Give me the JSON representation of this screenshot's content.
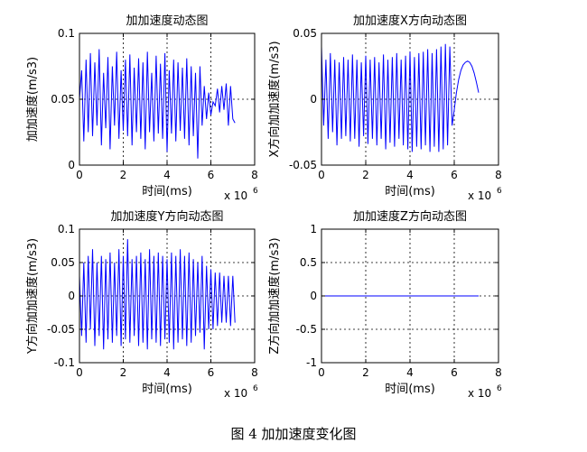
{
  "caption": "图 4  加加速度变化图",
  "colors": {
    "line": "#0000ff",
    "axis": "#000000",
    "grid": "#000000"
  },
  "chart_data": [
    {
      "type": "line",
      "title": "加加速度动态图",
      "xlabel": "时间(ms)",
      "ylabel": "加加速度(m/s3)",
      "x_exponent_label": "x 10",
      "x_exponent": "6",
      "xlim": [
        0,
        8
      ],
      "ylim": [
        0,
        0.1
      ],
      "xticks": [
        0,
        2,
        4,
        6,
        8
      ],
      "yticks": [
        0,
        0.05,
        0.1
      ],
      "xtick_labels": [
        "0",
        "2",
        "4",
        "6",
        "8"
      ],
      "ytick_labels": [
        "0",
        "0.05",
        "0.1"
      ],
      "grid": true,
      "series": [
        {
          "x": [
            0.0,
            0.1,
            0.2,
            0.3,
            0.4,
            0.5,
            0.6,
            0.7,
            0.8,
            0.9,
            1.0,
            1.1,
            1.2,
            1.3,
            1.4,
            1.5,
            1.6,
            1.7,
            1.8,
            1.9,
            2.0,
            2.1,
            2.2,
            2.3,
            2.4,
            2.5,
            2.6,
            2.7,
            2.8,
            2.9,
            3.0,
            3.1,
            3.2,
            3.3,
            3.4,
            3.5,
            3.6,
            3.7,
            3.8,
            3.9,
            4.0,
            4.1,
            4.2,
            4.3,
            4.4,
            4.5,
            4.6,
            4.7,
            4.8,
            4.9,
            5.0,
            5.1,
            5.2,
            5.3,
            5.4,
            5.5,
            5.6,
            5.7,
            5.8,
            5.9,
            6.0,
            6.1,
            6.2,
            6.3,
            6.4,
            6.5,
            6.6,
            6.7,
            6.8,
            6.9,
            7.0,
            7.1
          ],
          "y": [
            0.05,
            0.072,
            0.018,
            0.08,
            0.025,
            0.085,
            0.022,
            0.078,
            0.03,
            0.088,
            0.015,
            0.07,
            0.028,
            0.082,
            0.012,
            0.075,
            0.03,
            0.086,
            0.02,
            0.072,
            0.026,
            0.08,
            0.022,
            0.084,
            0.015,
            0.074,
            0.025,
            0.081,
            0.02,
            0.078,
            0.012,
            0.086,
            0.025,
            0.07,
            0.018,
            0.083,
            0.024,
            0.077,
            0.02,
            0.085,
            0.01,
            0.072,
            0.024,
            0.08,
            0.018,
            0.078,
            0.026,
            0.074,
            0.02,
            0.081,
            0.015,
            0.075,
            0.022,
            0.07,
            0.005,
            0.075,
            0.03,
            0.06,
            0.035,
            0.055,
            0.038,
            0.048,
            0.045,
            0.058,
            0.04,
            0.06,
            0.042,
            0.062,
            0.03,
            0.06,
            0.035,
            0.032
          ]
        }
      ]
    },
    {
      "type": "line",
      "title": "加加速度X方向动态图",
      "xlabel": "时间(ms)",
      "ylabel": "X方向加加速度(m/s3)",
      "x_exponent_label": "x 10",
      "x_exponent": "6",
      "xlim": [
        0,
        8
      ],
      "ylim": [
        -0.05,
        0.05
      ],
      "xticks": [
        0,
        2,
        4,
        6,
        8
      ],
      "yticks": [
        -0.05,
        0,
        0.05
      ],
      "xtick_labels": [
        "0",
        "2",
        "4",
        "6",
        "8"
      ],
      "ytick_labels": [
        "-0.05",
        "0",
        "0.05"
      ],
      "grid": true,
      "series": [
        {
          "x": [
            0.0,
            0.1,
            0.2,
            0.3,
            0.4,
            0.5,
            0.6,
            0.7,
            0.8,
            0.9,
            1.0,
            1.1,
            1.2,
            1.3,
            1.4,
            1.5,
            1.6,
            1.7,
            1.8,
            1.9,
            2.0,
            2.1,
            2.2,
            2.3,
            2.4,
            2.5,
            2.6,
            2.7,
            2.8,
            2.9,
            3.0,
            3.1,
            3.2,
            3.3,
            3.4,
            3.5,
            3.6,
            3.7,
            3.8,
            3.9,
            4.0,
            4.1,
            4.2,
            4.3,
            4.4,
            4.5,
            4.6,
            4.7,
            4.8,
            4.9,
            5.0,
            5.1,
            5.2,
            5.3,
            5.4,
            5.5,
            5.6,
            5.7,
            5.8,
            5.9,
            6.0,
            6.1,
            6.2,
            6.3,
            6.4,
            6.5,
            6.6,
            6.7,
            6.8,
            6.9,
            7.0,
            7.1
          ],
          "y": [
            0.04,
            -0.02,
            0.03,
            -0.03,
            0.035,
            -0.025,
            0.03,
            -0.035,
            0.028,
            -0.03,
            0.032,
            -0.028,
            0.03,
            -0.032,
            0.034,
            -0.03,
            0.03,
            -0.036,
            0.028,
            -0.028,
            0.033,
            -0.034,
            0.03,
            -0.03,
            0.032,
            -0.035,
            0.028,
            -0.03,
            0.034,
            -0.038,
            0.03,
            -0.033,
            0.032,
            -0.036,
            0.035,
            -0.03,
            0.03,
            -0.035,
            0.033,
            -0.038,
            0.036,
            -0.04,
            0.032,
            -0.036,
            0.035,
            -0.038,
            0.036,
            -0.035,
            0.038,
            -0.04,
            0.035,
            -0.036,
            0.038,
            -0.04,
            0.04,
            -0.038,
            0.042,
            -0.035,
            0.04,
            -0.02,
            -0.008,
            0.005,
            0.015,
            0.022,
            0.026,
            0.028,
            0.029,
            0.028,
            0.025,
            0.02,
            0.013,
            0.005
          ]
        }
      ]
    },
    {
      "type": "line",
      "title": "加加速度Y方向动态图",
      "xlabel": "时间(ms)",
      "ylabel": "Y方向加加速度(m/s3)",
      "x_exponent_label": "x 10",
      "x_exponent": "6",
      "xlim": [
        0,
        8
      ],
      "ylim": [
        -0.1,
        0.1
      ],
      "xticks": [
        0,
        2,
        4,
        6,
        8
      ],
      "yticks": [
        -0.1,
        -0.05,
        0,
        0.05,
        0.1
      ],
      "xtick_labels": [
        "0",
        "2",
        "4",
        "6",
        "8"
      ],
      "ytick_labels": [
        "-0.1",
        "-0.05",
        "0",
        "0.05",
        "0.1"
      ],
      "grid": true,
      "series": [
        {
          "x": [
            0.0,
            0.1,
            0.2,
            0.3,
            0.4,
            0.5,
            0.6,
            0.7,
            0.8,
            0.9,
            1.0,
            1.1,
            1.2,
            1.3,
            1.4,
            1.5,
            1.6,
            1.7,
            1.8,
            1.9,
            2.0,
            2.1,
            2.2,
            2.3,
            2.4,
            2.5,
            2.6,
            2.7,
            2.8,
            2.9,
            3.0,
            3.1,
            3.2,
            3.3,
            3.4,
            3.5,
            3.6,
            3.7,
            3.8,
            3.9,
            4.0,
            4.1,
            4.2,
            4.3,
            4.4,
            4.5,
            4.6,
            4.7,
            4.8,
            4.9,
            5.0,
            5.1,
            5.2,
            5.3,
            5.4,
            5.5,
            5.6,
            5.7,
            5.8,
            5.9,
            6.0,
            6.1,
            6.2,
            6.3,
            6.4,
            6.5,
            6.6,
            6.7,
            6.8,
            6.9,
            7.0,
            7.1
          ],
          "y": [
            0.03,
            -0.06,
            0.05,
            -0.07,
            0.06,
            -0.05,
            0.07,
            -0.075,
            0.05,
            -0.06,
            0.06,
            -0.08,
            0.055,
            -0.065,
            0.065,
            -0.07,
            0.05,
            -0.06,
            0.07,
            -0.075,
            0.06,
            -0.065,
            0.085,
            -0.07,
            0.055,
            -0.06,
            0.06,
            -0.075,
            0.065,
            -0.07,
            0.055,
            -0.08,
            0.07,
            -0.065,
            0.06,
            -0.07,
            0.065,
            -0.075,
            0.06,
            -0.065,
            0.055,
            -0.07,
            0.065,
            -0.08,
            0.06,
            -0.07,
            0.07,
            -0.065,
            0.06,
            -0.075,
            0.065,
            -0.07,
            0.055,
            -0.06,
            0.05,
            -0.055,
            0.06,
            -0.08,
            0.045,
            -0.05,
            0.04,
            -0.05,
            0.035,
            -0.045,
            0.035,
            -0.04,
            0.03,
            -0.04,
            0.03,
            -0.045,
            0.03,
            -0.04
          ]
        }
      ]
    },
    {
      "type": "line",
      "title": "加加速度Z方向动态图",
      "xlabel": "时间(ms)",
      "ylabel": "Z方向加加速度(m/s3)",
      "x_exponent_label": "x 10",
      "x_exponent": "6",
      "xlim": [
        0,
        8
      ],
      "ylim": [
        -1,
        1
      ],
      "xticks": [
        0,
        2,
        4,
        6,
        8
      ],
      "yticks": [
        -1,
        -0.5,
        0,
        0.5,
        1
      ],
      "xtick_labels": [
        "0",
        "2",
        "4",
        "6",
        "8"
      ],
      "ytick_labels": [
        "-1",
        "-0.5",
        "0",
        "0.5",
        "1"
      ],
      "grid": true,
      "series": [
        {
          "x": [
            0,
            7.1
          ],
          "y": [
            0,
            0
          ]
        }
      ]
    }
  ]
}
